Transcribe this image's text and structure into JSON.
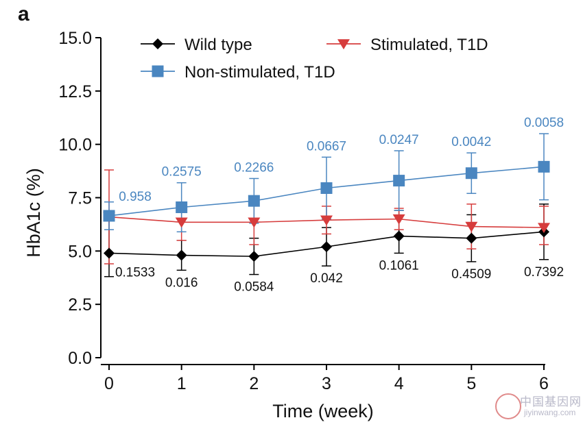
{
  "panel_label": "a",
  "watermark": {
    "text_cn": "中国基因网",
    "text_url": "jiyinwang.com"
  },
  "colors": {
    "wild": "#000000",
    "stim": "#d63c3c",
    "nonstim": "#4a86c0",
    "axis": "#000000"
  },
  "chart_data": {
    "type": "line",
    "title": "",
    "xlabel": "Time (week)",
    "ylabel": "HbA1c (%)",
    "x": [
      0,
      1,
      2,
      3,
      4,
      5,
      6
    ],
    "xlim": [
      0,
      6
    ],
    "ylim": [
      0,
      15
    ],
    "yticks": [
      "0.0",
      "2.5",
      "5.0",
      "7.5",
      "10.0",
      "12.5",
      "15.0"
    ],
    "xticks": [
      "0",
      "1",
      "2",
      "3",
      "4",
      "5",
      "6"
    ],
    "grid": false,
    "legend": "top",
    "series": [
      {
        "name": "Wild type",
        "marker": "diamond",
        "values": [
          4.9,
          4.8,
          4.75,
          5.2,
          5.7,
          5.6,
          5.9
        ],
        "err_high": [
          6.6,
          5.5,
          5.6,
          6.1,
          6.9,
          6.7,
          7.2
        ],
        "err_low": [
          3.8,
          4.1,
          3.9,
          4.3,
          4.9,
          4.5,
          4.6
        ]
      },
      {
        "name": "Stimulated, T1D",
        "marker": "triangle-down",
        "values": [
          6.6,
          6.35,
          6.35,
          6.45,
          6.5,
          6.15,
          6.1
        ],
        "err_high": [
          8.8,
          7.2,
          7.4,
          7.1,
          7.0,
          7.2,
          7.1
        ],
        "err_low": [
          4.4,
          5.5,
          5.3,
          5.8,
          6.0,
          5.1,
          5.3
        ]
      },
      {
        "name": "Non-stimulated, T1D",
        "marker": "square",
        "values": [
          6.65,
          7.05,
          7.35,
          7.95,
          8.3,
          8.65,
          8.95
        ],
        "err_high": [
          7.3,
          8.2,
          8.4,
          9.4,
          9.7,
          9.6,
          10.5
        ],
        "err_low": [
          6.0,
          5.9,
          6.3,
          6.5,
          6.9,
          7.7,
          7.4
        ]
      }
    ],
    "annotations_nonstim": [
      "0.958",
      "0.2575",
      "0.2266",
      "0.0667",
      "0.0247",
      "0.0042",
      "0.0058"
    ],
    "annotations_wild": [
      "0.1533",
      "0.016",
      "0.0584",
      "0.042",
      "0.1061",
      "0.4509",
      "0.7392"
    ]
  }
}
